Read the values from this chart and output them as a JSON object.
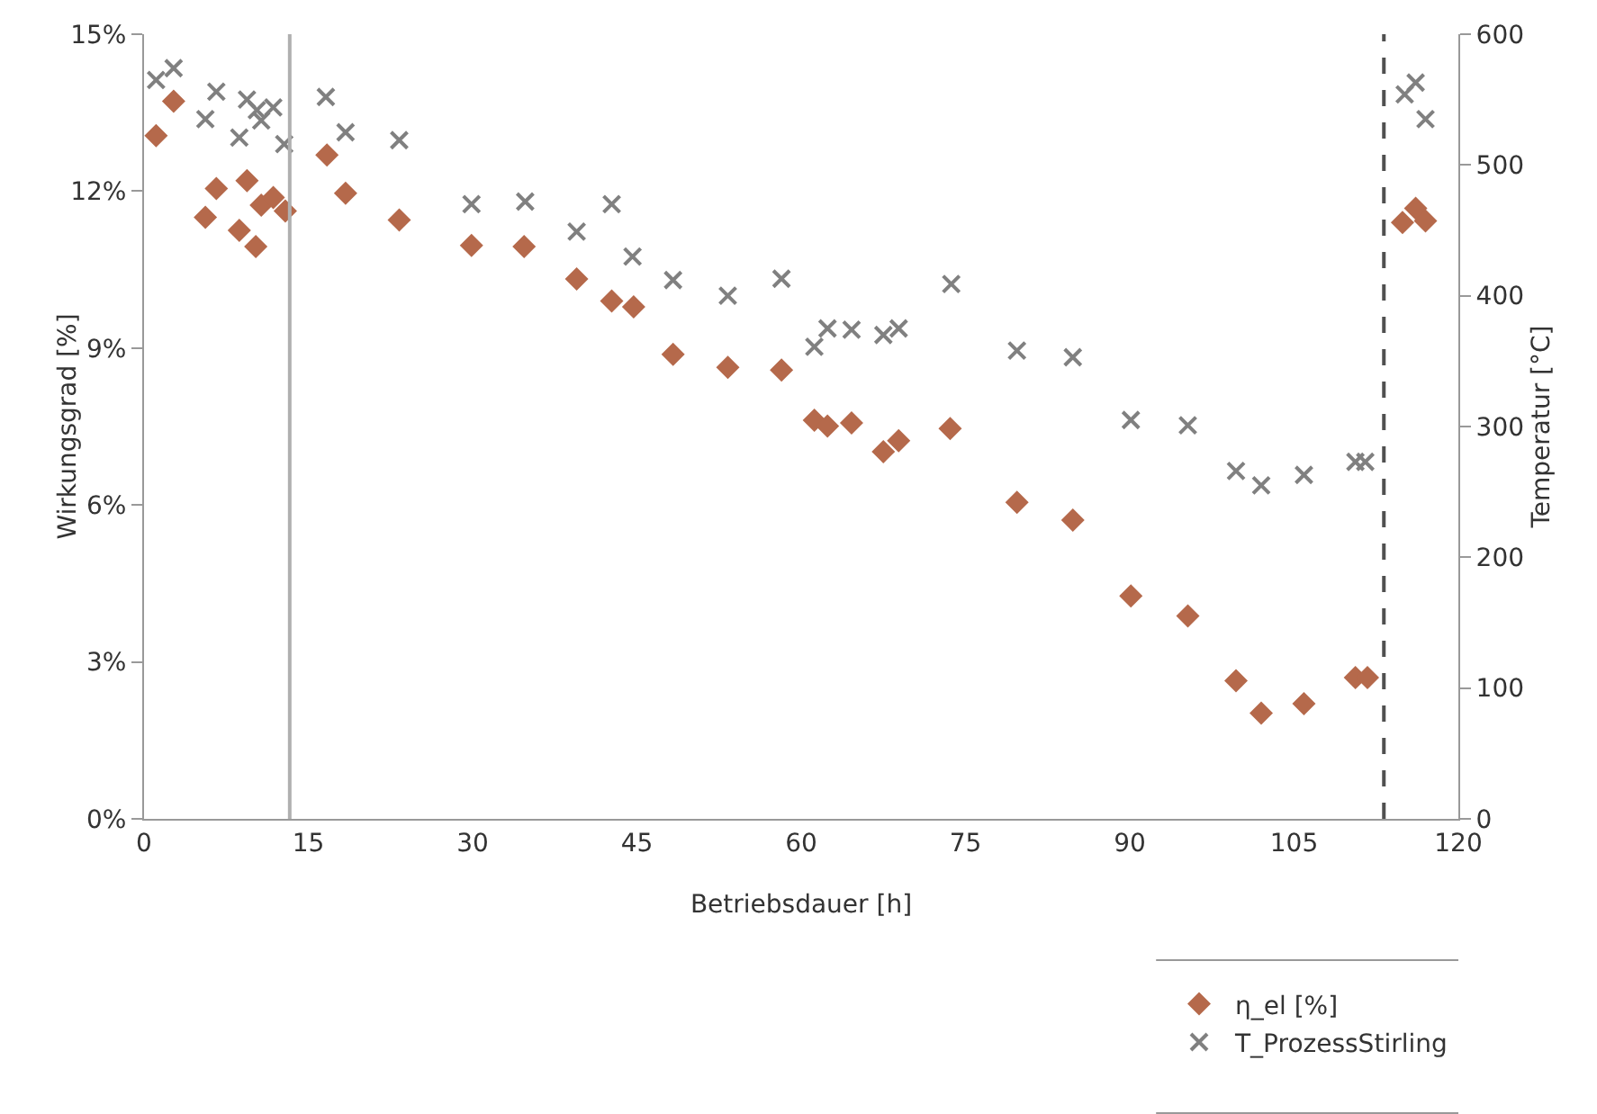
{
  "chart_data": {
    "type": "scatter",
    "xlabel": "Betriebsdauer [h]",
    "ylabel": "Wirkungsgrad [%]",
    "y2label": "Temperatur [°C]",
    "xlim": [
      0,
      120
    ],
    "xticks": [
      0,
      15,
      30,
      45,
      60,
      75,
      90,
      105,
      120
    ],
    "ylim": [
      0,
      15
    ],
    "yticks": [
      {
        "value": 0,
        "label": "0%"
      },
      {
        "value": 3,
        "label": "3%"
      },
      {
        "value": 6,
        "label": "6%"
      },
      {
        "value": 9,
        "label": "9%"
      },
      {
        "value": 12,
        "label": "12%"
      },
      {
        "value": 15,
        "label": "15%"
      }
    ],
    "y2lim": [
      0,
      600
    ],
    "y2ticks": [
      0,
      100,
      200,
      300,
      400,
      500,
      600
    ],
    "grid": false,
    "legend": "bottom right",
    "series": [
      {
        "name": "η_el [%]",
        "color": "#b5694b",
        "marker": "diamond",
        "x": [
          1.1,
          2.7,
          5.6,
          6.6,
          8.7,
          9.4,
          10.2,
          10.7,
          11.8,
          12.9,
          16.7,
          18.4,
          23.3,
          29.9,
          34.7,
          39.5,
          42.7,
          44.7,
          48.3,
          53.3,
          58.2,
          61.2,
          62.4,
          64.6,
          67.5,
          68.9,
          73.6,
          79.7,
          84.8,
          90.1,
          95.3,
          99.7,
          102.0,
          105.9,
          110.6,
          111.7,
          114.9,
          116.1,
          117.0
        ],
        "values": [
          13.06,
          13.72,
          11.5,
          12.05,
          11.25,
          12.2,
          10.94,
          11.73,
          11.88,
          11.62,
          12.69,
          11.96,
          11.45,
          10.96,
          10.94,
          10.32,
          9.9,
          9.79,
          8.88,
          8.63,
          8.58,
          7.62,
          7.51,
          7.57,
          7.02,
          7.23,
          7.46,
          6.05,
          5.71,
          4.26,
          3.88,
          2.64,
          2.02,
          2.2,
          2.7,
          2.7,
          11.4,
          11.67,
          11.43
        ]
      },
      {
        "name": "T_ProzessStirling",
        "color": "#808080",
        "marker": "cross",
        "axis": "y2",
        "x": [
          1.1,
          2.7,
          5.6,
          6.6,
          8.7,
          9.4,
          10.3,
          10.7,
          11.8,
          12.8,
          16.6,
          18.4,
          23.3,
          29.9,
          34.8,
          39.5,
          42.7,
          44.6,
          48.3,
          53.3,
          58.2,
          61.2,
          62.4,
          64.6,
          67.5,
          68.9,
          73.7,
          79.7,
          84.8,
          90.1,
          95.3,
          99.7,
          102.0,
          105.9,
          110.6,
          111.5,
          115.1,
          116.1,
          117.0
        ],
        "values": [
          565,
          574,
          535,
          556,
          521,
          550,
          542,
          534,
          544,
          516,
          552,
          525,
          519,
          470,
          472,
          449,
          470,
          430,
          412,
          400,
          413,
          361,
          375,
          374,
          370,
          375,
          409,
          358,
          353,
          305,
          301,
          266,
          255,
          263,
          273,
          273,
          554,
          563,
          535
        ]
      }
    ],
    "ref_lines": [
      {
        "axis": "x",
        "value": 13.3,
        "color": "#b0b0b0",
        "line_style": "solid"
      },
      {
        "axis": "x",
        "value": 113.2,
        "color": "#505050",
        "line_style": "dashed"
      }
    ]
  }
}
